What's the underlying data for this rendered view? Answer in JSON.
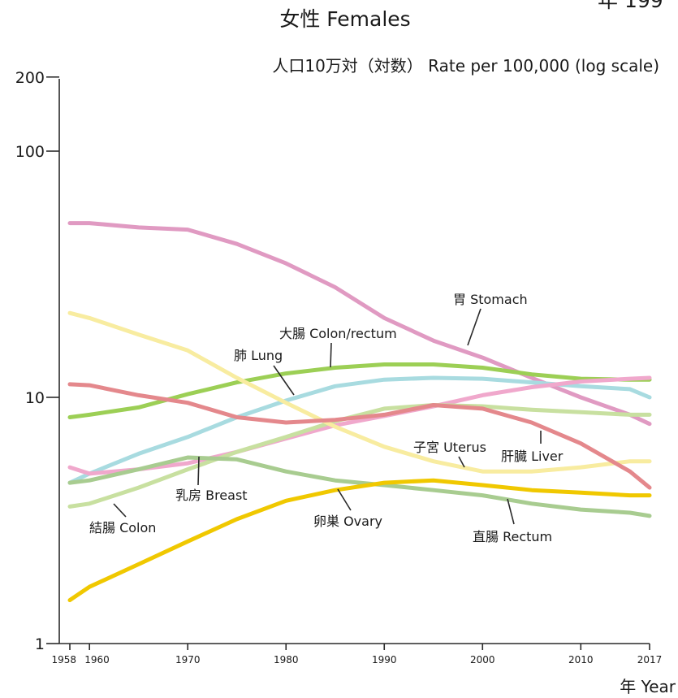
{
  "chart_data": {
    "type": "line",
    "title": "女性 Females",
    "corner_fragment": "年 199",
    "ylabel": "人口10万対（対数） Rate per 100,000 (log scale)",
    "xlabel": "年 Year",
    "yscale": "log",
    "ylim": [
      1,
      200
    ],
    "xlim": [
      1958,
      2017
    ],
    "y_ticks": [
      {
        "value": 1,
        "label": "1"
      },
      {
        "value": 10,
        "label": "10"
      },
      {
        "value": 100,
        "label": "100"
      },
      {
        "value": 200,
        "label": "200"
      }
    ],
    "x_ticks": [
      {
        "value": 1958,
        "label": "1958"
      },
      {
        "value": 1960,
        "label": "1960"
      },
      {
        "value": 1970,
        "label": "1970"
      },
      {
        "value": 1980,
        "label": "1980"
      },
      {
        "value": 1990,
        "label": "1990"
      },
      {
        "value": 2000,
        "label": "2000"
      },
      {
        "value": 2010,
        "label": "2010"
      },
      {
        "value": 2017,
        "label": "2017"
      }
    ],
    "grid": false,
    "legend": "inline labels",
    "series": [
      {
        "name": "胃 Stomach",
        "color": "#e09ac2",
        "x": [
          1958,
          1960,
          1965,
          1970,
          1975,
          1980,
          1985,
          1990,
          1995,
          2000,
          2005,
          2010,
          2015,
          2017
        ],
        "values": [
          51,
          51,
          49,
          48,
          42,
          35,
          28,
          21,
          17,
          14.5,
          12,
          10,
          8.5,
          7.8
        ]
      },
      {
        "name": "大腸 Colon/rectum",
        "color": "#9ccf55",
        "x": [
          1958,
          1960,
          1965,
          1970,
          1975,
          1980,
          1985,
          1990,
          1995,
          2000,
          2005,
          2010,
          2015,
          2017
        ],
        "values": [
          8.3,
          8.5,
          9.1,
          10.3,
          11.5,
          12.5,
          13.2,
          13.6,
          13.6,
          13.2,
          12.4,
          11.9,
          11.8,
          11.8
        ]
      },
      {
        "name": "肺 Lung",
        "color": "#a8dbe0",
        "x": [
          1958,
          1960,
          1965,
          1970,
          1975,
          1980,
          1985,
          1990,
          1995,
          2000,
          2005,
          2010,
          2015,
          2017
        ],
        "values": [
          4.5,
          4.9,
          5.9,
          6.9,
          8.3,
          9.7,
          11.1,
          11.8,
          12.0,
          11.9,
          11.5,
          11.1,
          10.8,
          10.0
        ]
      },
      {
        "name": "乳房 Breast",
        "color": "#f0a8cc",
        "x": [
          1958,
          1960,
          1965,
          1970,
          1975,
          1980,
          1985,
          1990,
          1995,
          2000,
          2005,
          2010,
          2015,
          2017
        ],
        "values": [
          5.2,
          4.9,
          5.1,
          5.4,
          6.0,
          6.8,
          7.7,
          8.4,
          9.2,
          10.2,
          11.0,
          11.6,
          11.9,
          12.0
        ]
      },
      {
        "name": "結腸 Colon",
        "color": "#c8e0a0",
        "x": [
          1958,
          1960,
          1965,
          1970,
          1975,
          1980,
          1985,
          1990,
          1995,
          2000,
          2005,
          2010,
          2015,
          2017
        ],
        "values": [
          3.6,
          3.7,
          4.3,
          5.1,
          6.0,
          6.9,
          8.0,
          9.0,
          9.3,
          9.2,
          8.9,
          8.7,
          8.5,
          8.5
        ]
      },
      {
        "name": "子宮 Uterus",
        "color": "#f8eca0",
        "x": [
          1958,
          1960,
          1965,
          1970,
          1975,
          1980,
          1985,
          1990,
          1995,
          2000,
          2005,
          2010,
          2015,
          2017
        ],
        "values": [
          22,
          21,
          18,
          15.5,
          12,
          9.5,
          7.6,
          6.3,
          5.5,
          5.0,
          5.0,
          5.2,
          5.5,
          5.5
        ]
      },
      {
        "name": "肝臓 Liver",
        "color": "#e4888c",
        "x": [
          1958,
          1960,
          1965,
          1970,
          1975,
          1980,
          1985,
          1990,
          1995,
          2000,
          2005,
          2010,
          2015,
          2017
        ],
        "values": [
          11.3,
          11.2,
          10.2,
          9.5,
          8.3,
          7.9,
          8.1,
          8.5,
          9.3,
          9.0,
          7.9,
          6.5,
          5.0,
          4.3
        ]
      },
      {
        "name": "直腸 Rectum",
        "color": "#a8cc90",
        "x": [
          1958,
          1960,
          1965,
          1970,
          1975,
          1980,
          1985,
          1990,
          1995,
          2000,
          2005,
          2010,
          2015,
          2017
        ],
        "values": [
          4.5,
          4.6,
          5.1,
          5.7,
          5.6,
          5.0,
          4.6,
          4.4,
          4.2,
          4.0,
          3.7,
          3.5,
          3.4,
          3.3
        ]
      },
      {
        "name": "卵巣 Ovary",
        "color": "#f0c800",
        "x": [
          1958,
          1960,
          1965,
          1970,
          1975,
          1980,
          1985,
          1990,
          1995,
          2000,
          2005,
          2010,
          2015,
          2017
        ],
        "values": [
          1.5,
          1.7,
          2.1,
          2.6,
          3.2,
          3.8,
          4.2,
          4.5,
          4.6,
          4.4,
          4.2,
          4.1,
          4.0,
          4.0
        ]
      }
    ]
  }
}
